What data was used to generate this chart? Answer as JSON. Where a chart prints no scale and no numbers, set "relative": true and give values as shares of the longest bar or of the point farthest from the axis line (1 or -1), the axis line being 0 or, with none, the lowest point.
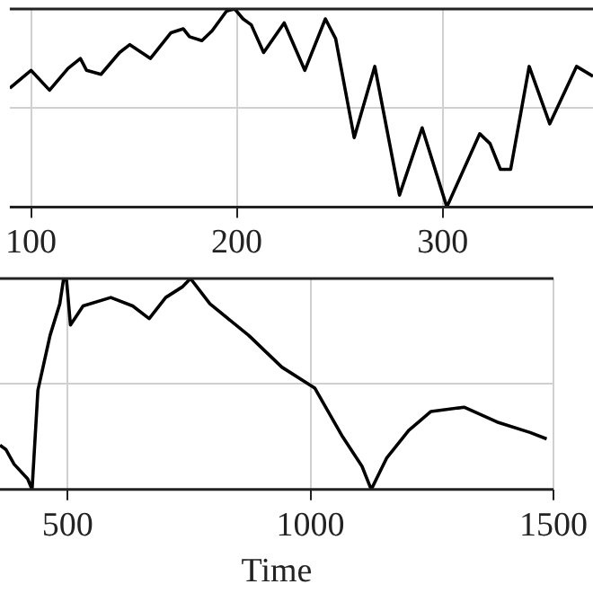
{
  "chart_data": [
    {
      "type": "line",
      "relative": true,
      "color": "#000000",
      "grid": true,
      "tick_labels": "x",
      "xlim": [
        89.7,
        373
      ],
      "xticks": [
        100,
        200,
        300
      ],
      "x": [
        89.7,
        100,
        109,
        118,
        124,
        127,
        134,
        143,
        148,
        158,
        168,
        174,
        177,
        183,
        188,
        195,
        199,
        203,
        207,
        213,
        223,
        233,
        243,
        248,
        257,
        267,
        279,
        290,
        302,
        318,
        323,
        328,
        333,
        342,
        352,
        365,
        373
      ],
      "values": [
        0.6,
        0.69,
        0.59,
        0.7,
        0.75,
        0.69,
        0.67,
        0.78,
        0.82,
        0.75,
        0.88,
        0.9,
        0.86,
        0.84,
        0.89,
        0.99,
        1.0,
        0.95,
        0.92,
        0.78,
        0.93,
        0.69,
        0.95,
        0.85,
        0.35,
        0.71,
        0.06,
        0.4,
        0,
        0.37,
        0.32,
        0.19,
        0.19,
        0.71,
        0.42,
        0.71,
        0.66
      ]
    },
    {
      "type": "line",
      "relative": true,
      "color": "#000000",
      "grid": true,
      "tick_labels": "x",
      "xlabel": "Time",
      "xlim": [
        361,
        1500
      ],
      "xticks": [
        500,
        1000,
        1500
      ],
      "x": [
        361,
        373,
        390,
        418,
        427,
        439,
        464,
        484,
        492,
        498,
        506,
        532,
        589,
        634,
        668,
        702,
        736,
        753,
        793,
        873,
        941,
        1009,
        1066,
        1106,
        1125,
        1157,
        1202,
        1248,
        1316,
        1384,
        1452,
        1486
      ],
      "values": [
        0.21,
        0.19,
        0.12,
        0.05,
        0,
        0.47,
        0.73,
        0.88,
        1.0,
        0.99,
        0.78,
        0.87,
        0.91,
        0.87,
        0.81,
        0.91,
        0.96,
        1.0,
        0.88,
        0.73,
        0.58,
        0.48,
        0.25,
        0.11,
        0,
        0.15,
        0.28,
        0.37,
        0.39,
        0.32,
        0.27,
        0.24
      ]
    }
  ]
}
